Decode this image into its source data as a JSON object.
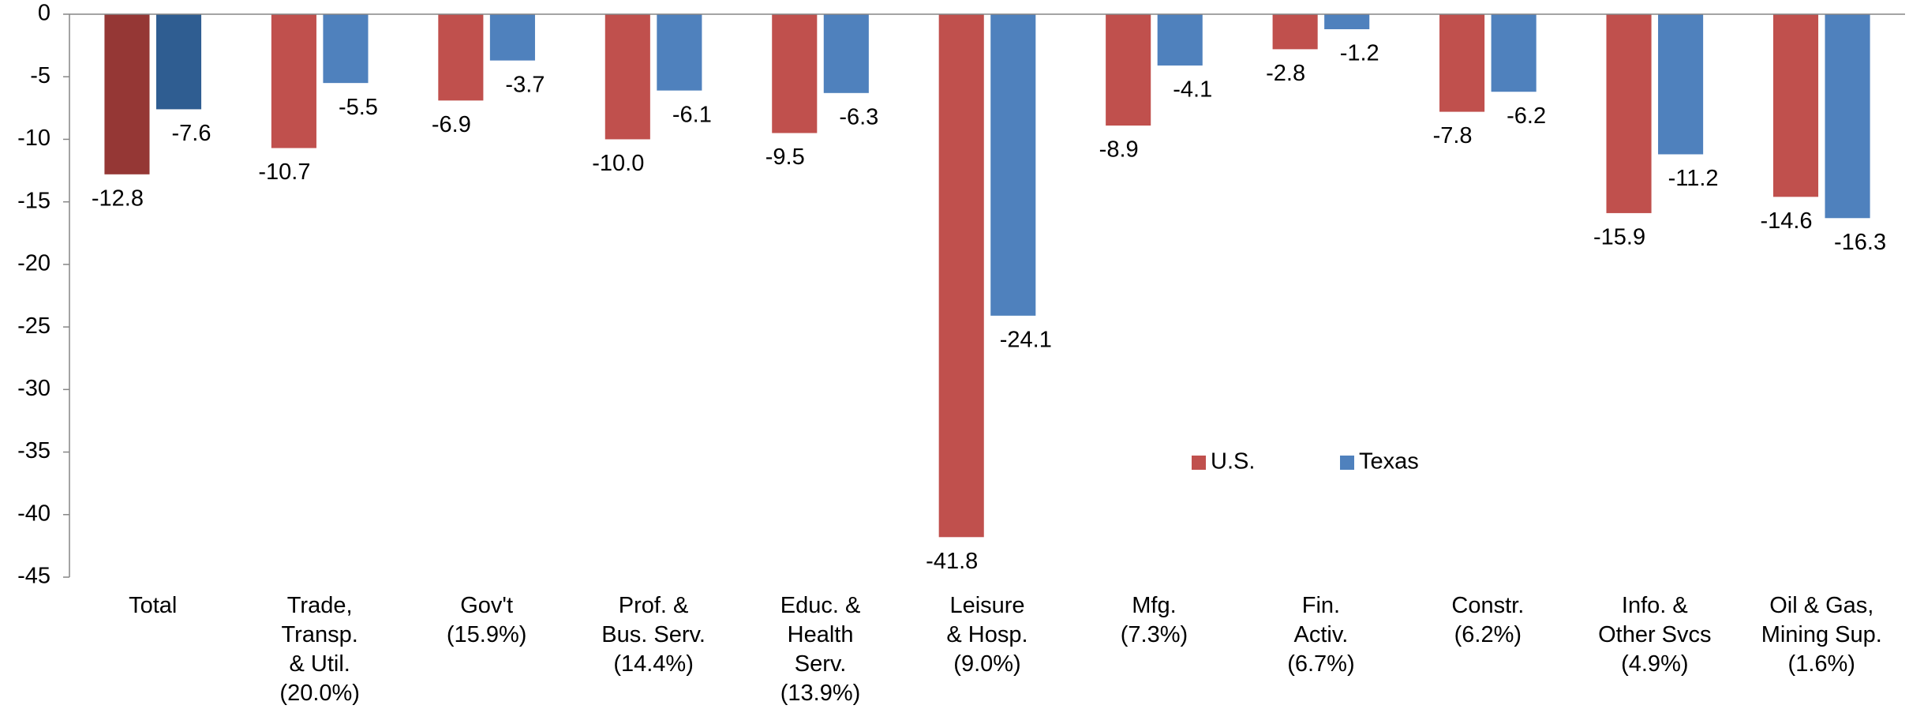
{
  "chart_data": {
    "type": "bar",
    "categories": [
      "Total",
      "Trade,\nTransp.\n& Util.\n(20.0%)",
      "Gov't\n(15.9%)",
      "Prof. &\nBus. Serv.\n(14.4%)",
      "Educ. &\nHealth\nServ.\n(13.9%)",
      "Leisure\n& Hosp.\n(9.0%)",
      "Mfg.\n(7.3%)",
      "Fin.\nActiv.\n(6.7%)",
      "Constr.\n(6.2%)",
      "Info. &\nOther Svcs\n(4.9%)",
      "Oil & Gas,\nMining Sup.\n(1.6%)"
    ],
    "series": [
      {
        "name": "U.S.",
        "color": "#c0504d",
        "colors": [
          "#953735",
          "#c0504d",
          "#c0504d",
          "#c0504d",
          "#c0504d",
          "#c0504d",
          "#c0504d",
          "#c0504d",
          "#c0504d",
          "#c0504d",
          "#c0504d"
        ],
        "values": [
          -12.8,
          -10.7,
          -6.9,
          -10.0,
          -9.5,
          -41.8,
          -8.9,
          -2.8,
          -7.8,
          -15.9,
          -14.6
        ],
        "value_labels": [
          "-12.8",
          "-10.7",
          "-6.9",
          "-10.0",
          "-9.5",
          "-41.8",
          "-8.9",
          "-2.8",
          "-7.8",
          "-15.9",
          "-14.6"
        ]
      },
      {
        "name": "Texas",
        "color": "#4f81bd",
        "colors": [
          "#2f5d91",
          "#4f81bd",
          "#4f81bd",
          "#4f81bd",
          "#4f81bd",
          "#4f81bd",
          "#4f81bd",
          "#4f81bd",
          "#4f81bd",
          "#4f81bd",
          "#4f81bd"
        ],
        "values": [
          -7.6,
          -5.5,
          -3.7,
          -6.1,
          -6.3,
          -24.1,
          -4.1,
          -1.2,
          -6.2,
          -11.2,
          -16.3
        ],
        "value_labels": [
          "-7.6",
          "-5.5",
          "-3.7",
          "-6.1",
          "-6.3",
          "-24.1",
          "-4.1",
          "-1.2",
          "-6.2",
          "-11.2",
          "-16.3"
        ]
      }
    ],
    "ylim": [
      -45,
      0
    ],
    "yticks": [
      0,
      -5,
      -10,
      -15,
      -20,
      -25,
      -30,
      -35,
      -40,
      -45
    ],
    "grid": false,
    "legend": "center"
  }
}
